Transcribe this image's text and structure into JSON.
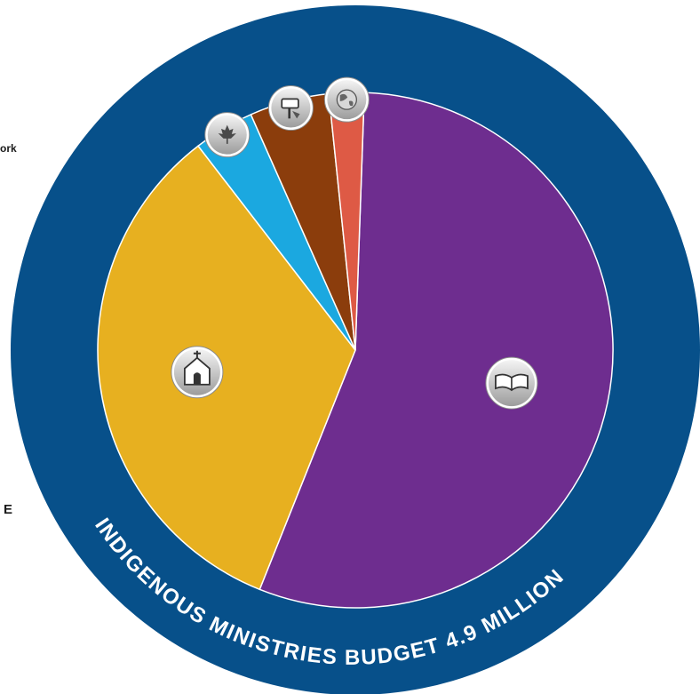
{
  "chart_data": {
    "type": "pie",
    "title": "INDIGENOUS MINISTRIES BUDGET 4.9 MILLION",
    "slices": [
      {
        "icon": "book-icon",
        "value": 55.5,
        "color": "#6e2d8f"
      },
      {
        "icon": "church-icon",
        "value": 33.5,
        "color": "#e7b020"
      },
      {
        "icon": "maple-leaf-icon",
        "value": 3.8,
        "color": "#1ba8e0"
      },
      {
        "icon": "hand-sign-icon",
        "value": 5.0,
        "color": "#8b3d0c"
      },
      {
        "icon": "globe-icon",
        "value": 2.2,
        "color": "#de5a45"
      }
    ],
    "ring_color": "#07508a",
    "label_color": "#ffffff"
  },
  "cropped_text": {
    "fragment_1": "ork",
    "fragment_2": "E"
  }
}
